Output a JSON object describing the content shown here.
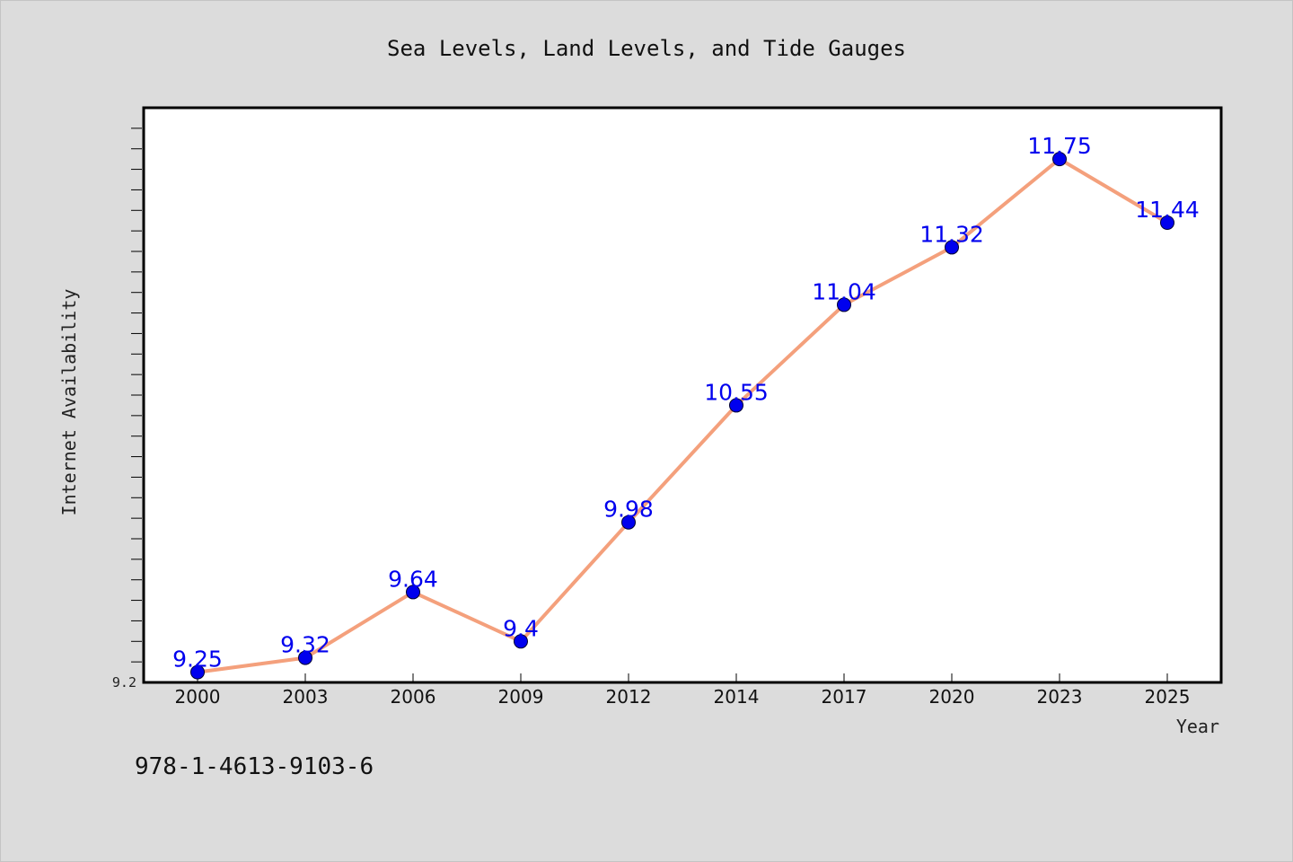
{
  "chart_data": {
    "type": "line",
    "title": "Sea Levels, Land Levels, and Tide Gauges",
    "xlabel": "Year",
    "ylabel": "Internet Availability",
    "categories": [
      "2000",
      "2003",
      "2006",
      "2009",
      "2012",
      "2014",
      "2017",
      "2020",
      "2023",
      "2025"
    ],
    "series": [
      {
        "values": [
          9.25,
          9.32,
          9.64,
          9.4,
          9.98,
          10.55,
          11.04,
          11.32,
          11.75,
          11.44
        ],
        "data_labels": [
          "9.25",
          "9.32",
          "9.64",
          "9.4",
          "9.98",
          "10.55",
          "11.04",
          "11.32",
          "11.75",
          "11.44"
        ]
      }
    ],
    "ylim": [
      9.2,
      12.0
    ],
    "yticks": [
      9.2
    ],
    "ytick_labels": [
      "9.2"
    ],
    "y_minor_step": 0.1,
    "grid": false,
    "legend": "none",
    "colors": {
      "line": "#f4a07c",
      "marker": "#0000ee",
      "data_label": "#0000ee",
      "plot_background": "#ffffff",
      "figure_background": "#dcdcdc"
    }
  },
  "annotation": "978-1-4613-9103-6"
}
